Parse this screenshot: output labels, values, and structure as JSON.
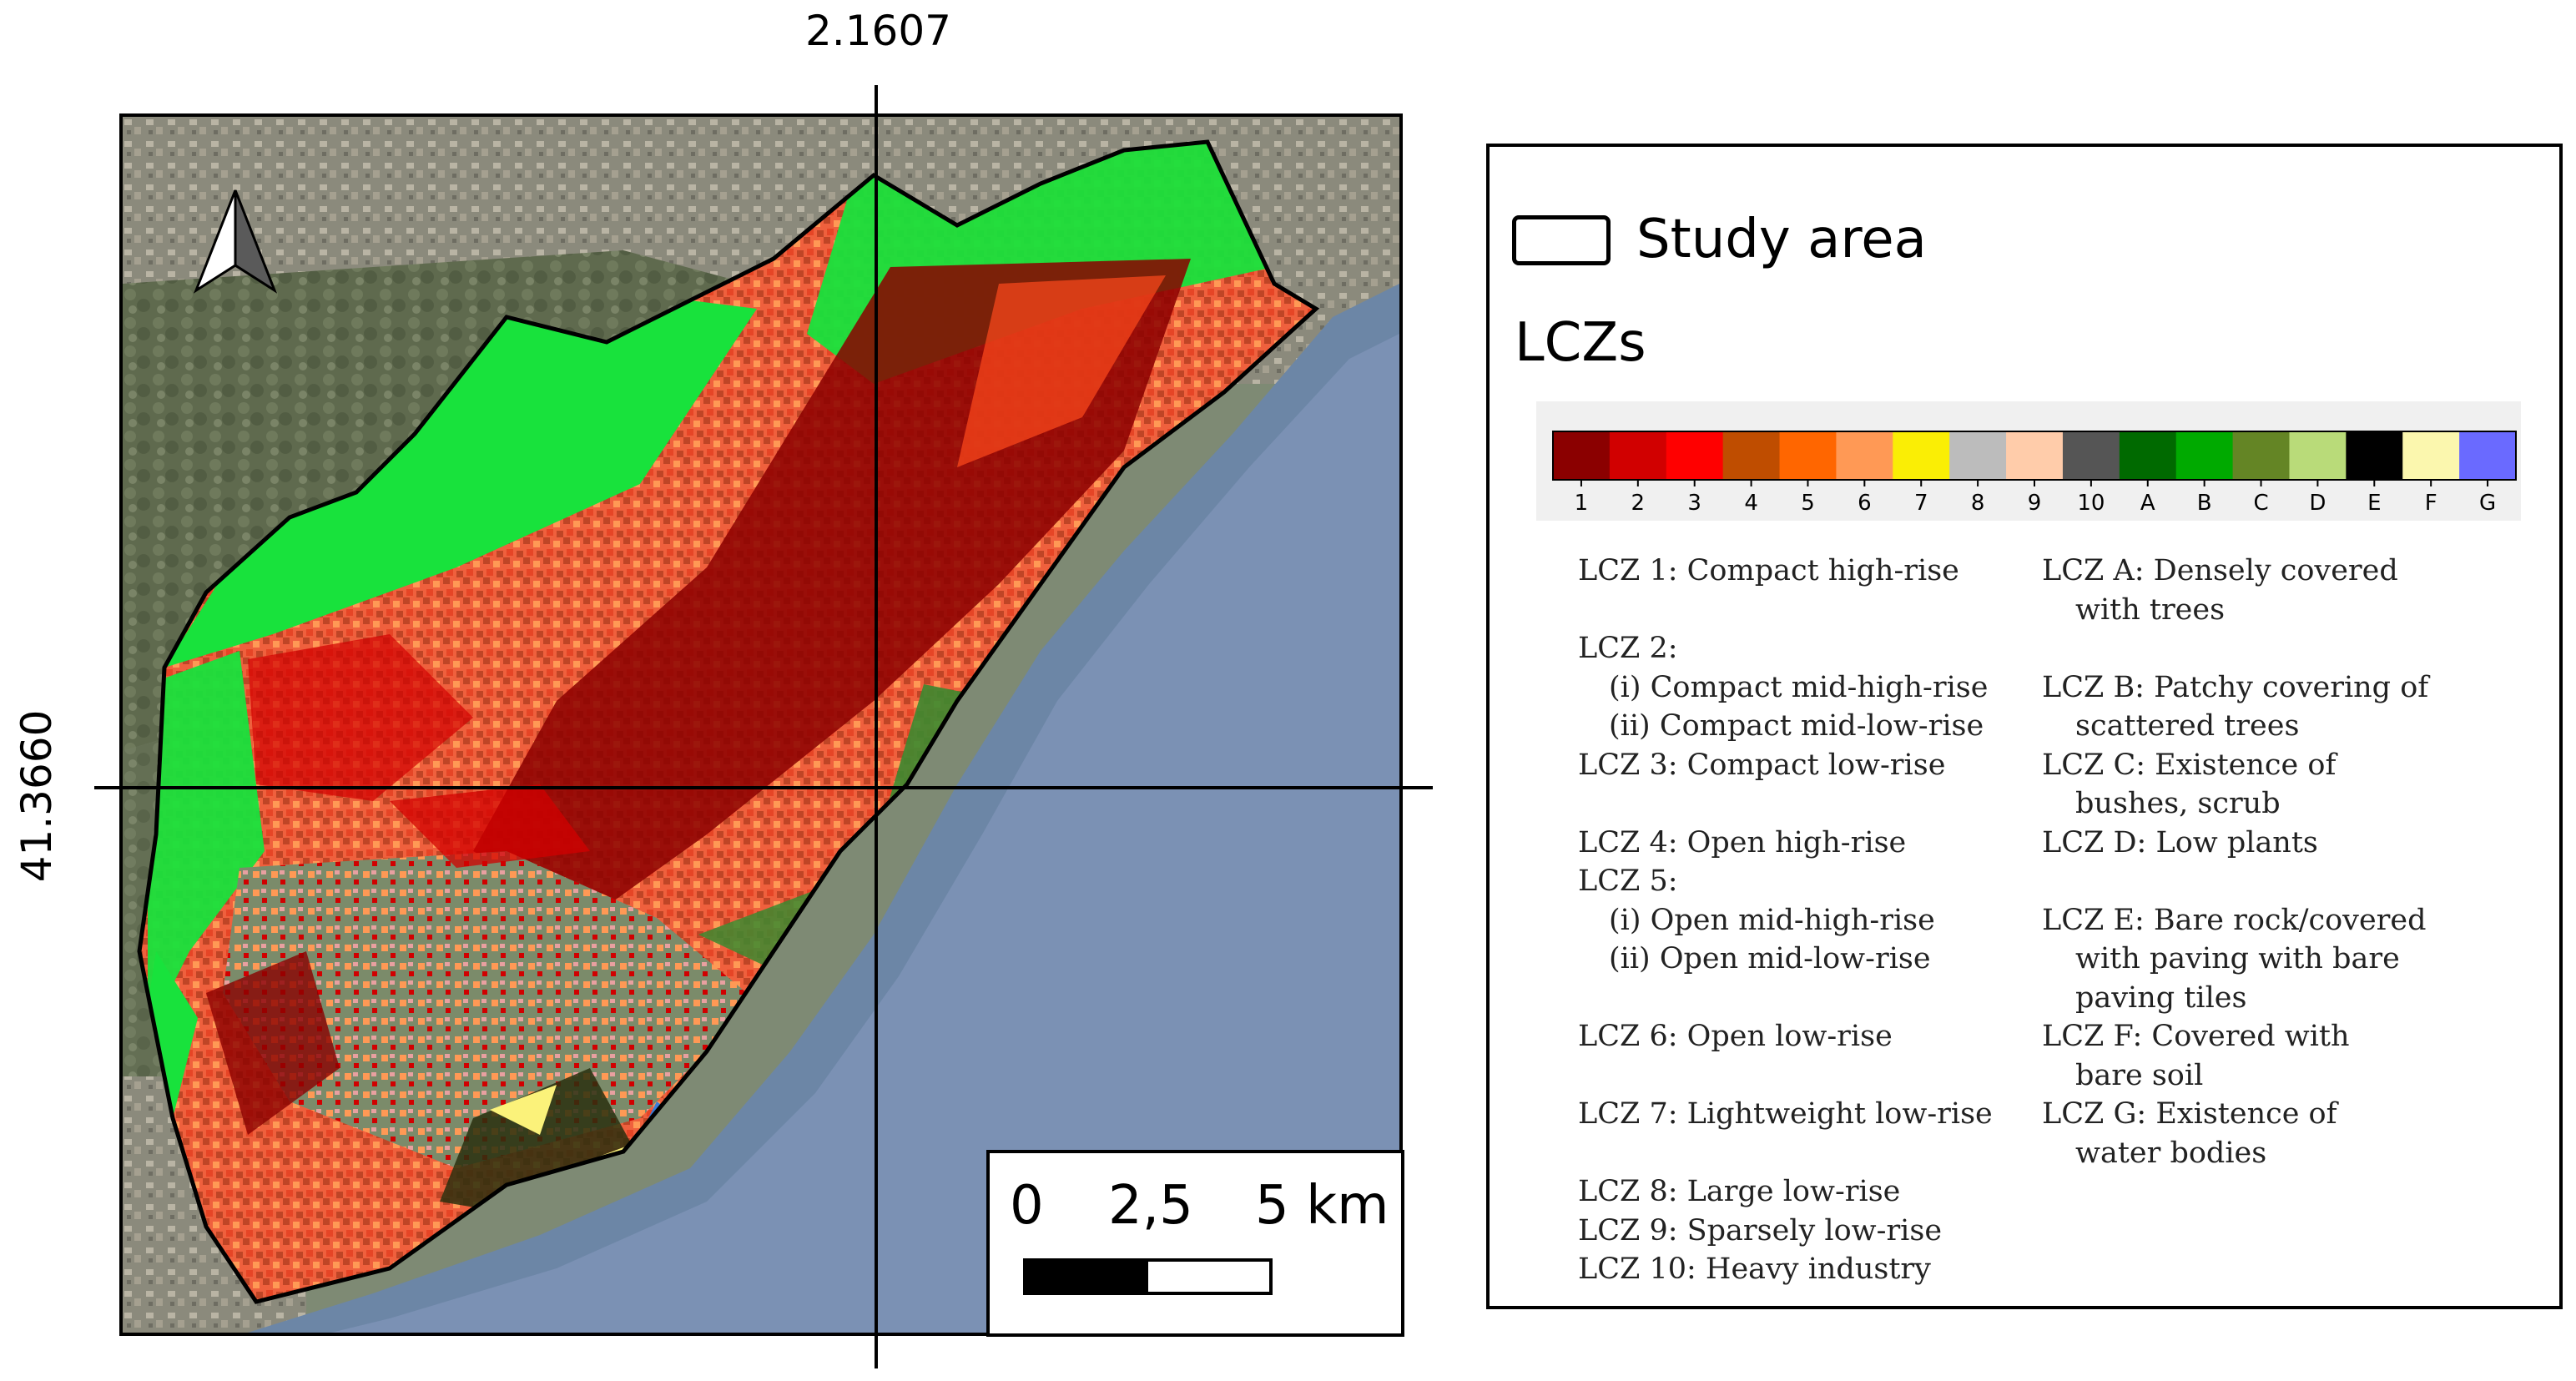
{
  "coordinates": {
    "longitude_label": "2.1607",
    "latitude_label": "41.3660"
  },
  "scale_bar": {
    "label_start": "0",
    "label_mid": "2,5",
    "label_end": "5 km"
  },
  "north_arrow": {
    "icon": "north-arrow-icon"
  },
  "legend": {
    "study_area_label": "Study area",
    "lczs_title": "LCZs",
    "colorbar": [
      {
        "label": "1",
        "color": "#8b0000"
      },
      {
        "label": "2",
        "color": "#d10000"
      },
      {
        "label": "3",
        "color": "#ff0000"
      },
      {
        "label": "4",
        "color": "#bf4d00"
      },
      {
        "label": "5",
        "color": "#ff6600"
      },
      {
        "label": "6",
        "color": "#ff9955"
      },
      {
        "label": "7",
        "color": "#faee05"
      },
      {
        "label": "8",
        "color": "#bcbcbc"
      },
      {
        "label": "9",
        "color": "#ffccaa"
      },
      {
        "label": "10",
        "color": "#555555"
      },
      {
        "label": "A",
        "color": "#006a00"
      },
      {
        "label": "B",
        "color": "#00aa00"
      },
      {
        "label": "C",
        "color": "#648525"
      },
      {
        "label": "D",
        "color": "#b9db79"
      },
      {
        "label": "E",
        "color": "#000000"
      },
      {
        "label": "F",
        "color": "#fbf7ae"
      },
      {
        "label": "G",
        "color": "#6a6aff"
      }
    ],
    "descriptions_left": [
      {
        "text": "LCZ 1: Compact high-rise",
        "indent": 0,
        "gap": 0
      },
      {
        "text": "LCZ 2:",
        "indent": 0,
        "gap": 1
      },
      {
        "text": "(i) Compact mid-high-rise",
        "indent": 1,
        "gap": 0
      },
      {
        "text": "(ii) Compact mid-low-rise",
        "indent": 1,
        "gap": 0
      },
      {
        "text": "LCZ 3: Compact low-rise",
        "indent": 0,
        "gap": 0
      },
      {
        "text": "LCZ 4: Open high-rise",
        "indent": 0,
        "gap": 1
      },
      {
        "text": "LCZ 5:",
        "indent": 0,
        "gap": 0
      },
      {
        "text": "(i) Open mid-high-rise",
        "indent": 1,
        "gap": 0
      },
      {
        "text": "(ii) Open mid-low-rise",
        "indent": 1,
        "gap": 0
      },
      {
        "text": "LCZ 6: Open low-rise",
        "indent": 0,
        "gap": 1
      },
      {
        "text": "LCZ 7: Lightweight low-rise",
        "indent": 0,
        "gap": 1
      },
      {
        "text": "LCZ 8: Large low-rise",
        "indent": 0,
        "gap": 1
      },
      {
        "text": "LCZ 9: Sparsely low-rise",
        "indent": 0,
        "gap": 0
      },
      {
        "text": "LCZ 10: Heavy industry",
        "indent": 0,
        "gap": 0
      }
    ],
    "descriptions_right": [
      {
        "text": "LCZ A: Densely covered",
        "indent": 0,
        "gap": 0
      },
      {
        "text": "with trees",
        "indent": 2,
        "gap": 0
      },
      {
        "text": "LCZ B: Patchy covering of",
        "indent": 0,
        "gap": 1
      },
      {
        "text": "scattered trees",
        "indent": 2,
        "gap": 0
      },
      {
        "text": "LCZ C: Existence of",
        "indent": 0,
        "gap": 0
      },
      {
        "text": "bushes, scrub",
        "indent": 2,
        "gap": 0
      },
      {
        "text": "LCZ D: Low plants",
        "indent": 0,
        "gap": 0
      },
      {
        "text": "LCZ E: Bare rock/covered",
        "indent": 0,
        "gap": 1
      },
      {
        "text": "with paving with bare",
        "indent": 2,
        "gap": 0
      },
      {
        "text": "paving tiles",
        "indent": 2,
        "gap": 0
      },
      {
        "text": "LCZ F: Covered with",
        "indent": 0,
        "gap": 0
      },
      {
        "text": "bare soil",
        "indent": 2,
        "gap": 0
      },
      {
        "text": "LCZ G: Existence of",
        "indent": 0,
        "gap": 0
      },
      {
        "text": "water bodies",
        "indent": 2,
        "gap": 0
      }
    ]
  }
}
